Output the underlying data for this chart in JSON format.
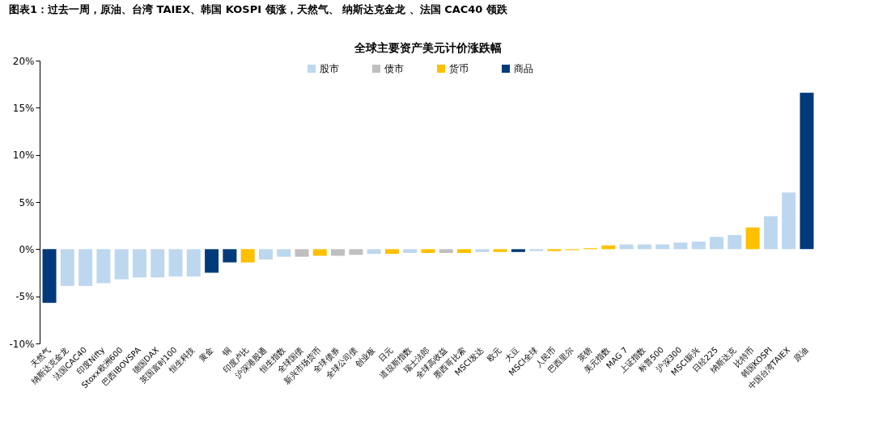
{
  "chart_data": {
    "type": "bar",
    "title": "全球主要资产美元计价涨跌幅",
    "annotations": [
      "图表1：过去一周，原油、台湾 TAIEX、韩国 KOSPI 领涨，天然气、 纳斯达克金龙 、法国 CAC40 领跌"
    ],
    "categories": [
      "天然气",
      "纳斯达克金龙",
      "法国CAC40",
      "印度Nifty",
      "Stoxx欧洲600",
      "巴西IBOVSPA",
      "德国DAX",
      "英国富时100",
      "恒生科技",
      "黄金",
      "铜",
      "印度卢比",
      "沪深港股通",
      "恒生指数",
      "全球国债",
      "新兴市场货币",
      "全球债券",
      "全球公司债",
      "创业板",
      "日元",
      "道琼斯指数",
      "瑞士法郎",
      "全球高收益",
      "墨西哥比索",
      "MSCI发达",
      "欧元",
      "大豆",
      "MSCI全球",
      "人民币",
      "巴西里尔",
      "英镑",
      "美元指数",
      "MAG 7",
      "上证指数",
      "标普500",
      "沪深300",
      "MSCI新兴",
      "日经225",
      "纳斯达克",
      "比特币",
      "韩国KOSPI",
      "中国台湾TAIEX",
      "原油"
    ],
    "stacked": true,
    "series": [
      {
        "name": "股市",
        "color": "#bdd7ee",
        "values": [
          null,
          -3.9,
          -3.9,
          -3.6,
          -3.2,
          -3.0,
          -3.0,
          -2.9,
          -2.9,
          null,
          null,
          null,
          -1.1,
          -0.8,
          null,
          null,
          null,
          null,
          -0.5,
          null,
          -0.4,
          null,
          null,
          null,
          -0.3,
          null,
          null,
          -0.2,
          null,
          null,
          null,
          null,
          0.5,
          0.5,
          0.5,
          0.7,
          0.8,
          1.3,
          1.5,
          null,
          3.5,
          6.0,
          null
        ]
      },
      {
        "name": "债市",
        "color": "#bfbfbf",
        "values": [
          null,
          null,
          null,
          null,
          null,
          null,
          null,
          null,
          null,
          null,
          null,
          null,
          null,
          null,
          -0.8,
          null,
          -0.7,
          -0.6,
          null,
          null,
          null,
          null,
          -0.4,
          null,
          null,
          null,
          null,
          null,
          null,
          null,
          null,
          null,
          null,
          null,
          null,
          null,
          null,
          null,
          null,
          null,
          null,
          null,
          null
        ]
      },
      {
        "name": "货币",
        "color": "#ffc000",
        "values": [
          null,
          null,
          null,
          null,
          null,
          null,
          null,
          null,
          null,
          null,
          null,
          -1.4,
          null,
          null,
          null,
          -0.7,
          null,
          null,
          null,
          -0.5,
          null,
          -0.4,
          null,
          -0.4,
          null,
          -0.3,
          null,
          null,
          -0.2,
          -0.1,
          0.1,
          0.4,
          null,
          null,
          null,
          null,
          null,
          null,
          null,
          2.3,
          null,
          null,
          null
        ]
      },
      {
        "name": "商品",
        "color": "#003a7a",
        "values": [
          -5.7,
          null,
          null,
          null,
          null,
          null,
          null,
          null,
          null,
          -2.5,
          -1.4,
          null,
          null,
          null,
          null,
          null,
          null,
          null,
          null,
          null,
          null,
          null,
          null,
          null,
          null,
          null,
          -0.3,
          null,
          null,
          null,
          null,
          null,
          null,
          null,
          null,
          null,
          null,
          null,
          null,
          null,
          null,
          null,
          16.6
        ]
      }
    ],
    "ylim": [
      -10,
      20
    ],
    "yticks": [
      {
        "value": -10,
        "label": "-10%"
      },
      {
        "value": -5,
        "label": "-5%"
      },
      {
        "value": 0,
        "label": "0%"
      },
      {
        "value": 5,
        "label": "5%"
      },
      {
        "value": 10,
        "label": "10%"
      },
      {
        "value": 15,
        "label": "15%"
      },
      {
        "value": 20,
        "label": "20%"
      }
    ],
    "legend": "top",
    "grid": false
  }
}
